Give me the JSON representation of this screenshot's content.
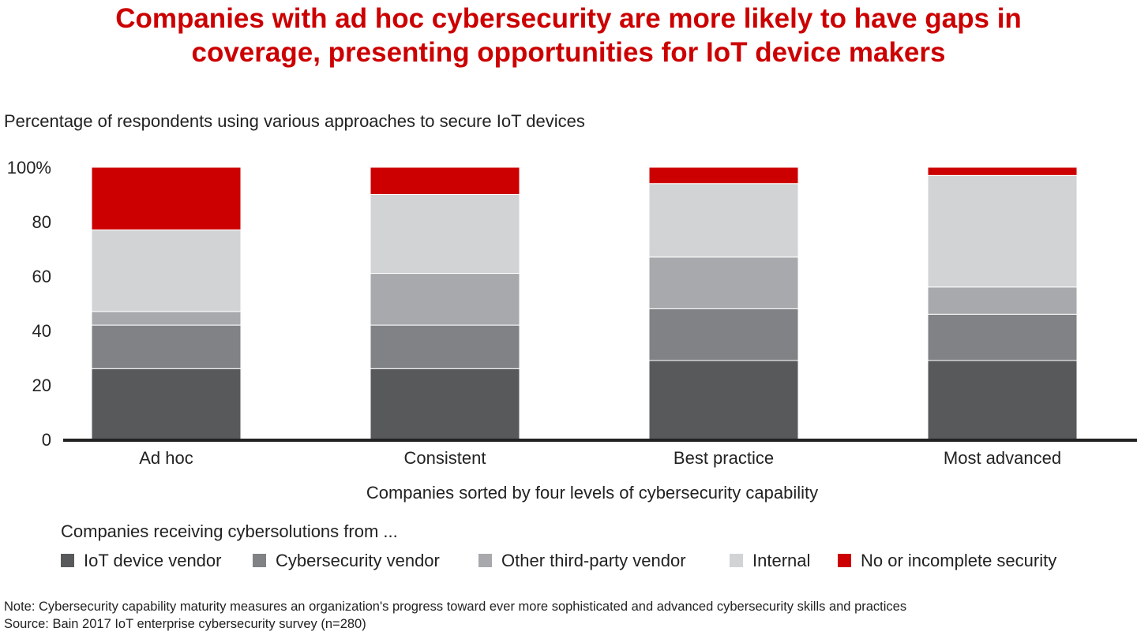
{
  "title_line1": "Companies with ad hoc cybersecurity are more likely to have gaps in",
  "title_line2": "coverage, presenting opportunities for IoT device makers",
  "notes": {
    "note": "Note: Cybersecurity capability maturity measures an organization's progress toward ever more sophisticated and advanced cybersecurity skills and practices",
    "source": "Source: Bain 2017 IoT enterprise cybersecurity survey (n=280)"
  },
  "chart_data": {
    "type": "bar",
    "stacked": true,
    "subtitle": "Percentage of respondents using various approaches to secure IoT devices",
    "xlabel": "Companies sorted by four levels of cybersecurity capability",
    "ylabel": "",
    "ylim": [
      0,
      100
    ],
    "yticks": [
      "0",
      "20",
      "40",
      "60",
      "80",
      "100%"
    ],
    "grid": false,
    "legend_title": "Companies receiving cybersolutions from ...",
    "legend_position": "bottom",
    "categories": [
      "Ad hoc",
      "Consistent",
      "Best practice",
      "Most advanced"
    ],
    "series": [
      {
        "name": "IoT device vendor",
        "color": "#58595b",
        "values": [
          26,
          26,
          29,
          29
        ]
      },
      {
        "name": "Cybersecurity vendor",
        "color": "#808285",
        "values": [
          16,
          16,
          19,
          17
        ]
      },
      {
        "name": "Other third-party vendor",
        "color": "#a7a9ac",
        "values": [
          5,
          19,
          19,
          10
        ]
      },
      {
        "name": "Internal",
        "color": "#d1d3d4",
        "values": [
          30,
          29,
          27,
          41
        ]
      },
      {
        "name": "No or incomplete security",
        "color": "#cc0000",
        "values": [
          23,
          10,
          6,
          3
        ]
      }
    ]
  }
}
